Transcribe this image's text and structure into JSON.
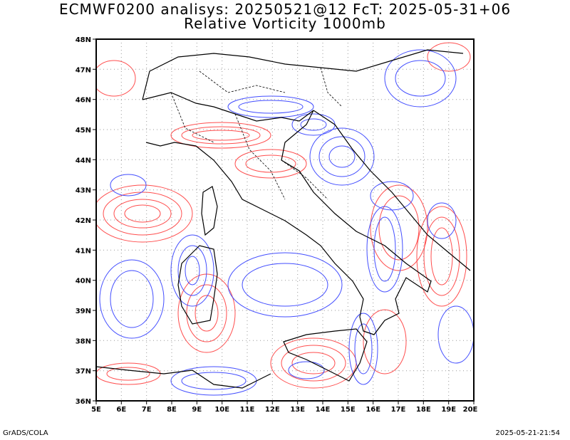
{
  "title_line1": "ECMWF0200 analisys: 20250521@12 FcT: 2025-05-31+06",
  "title_line2": "Relative Vorticity 1000mb",
  "footer_left": "GrADS/COLA",
  "footer_right": "2025-05-21-21:54",
  "axes": {
    "lon_labels": [
      "5E",
      "6E",
      "7E",
      "8E",
      "9E",
      "10E",
      "11E",
      "12E",
      "13E",
      "14E",
      "15E",
      "16E",
      "17E",
      "18E",
      "19E",
      "20E"
    ],
    "lat_labels": [
      "48N",
      "47N",
      "46N",
      "45N",
      "44N",
      "43N",
      "42N",
      "41N",
      "40N",
      "39N",
      "38N",
      "37N",
      "36N"
    ],
    "lon_range": [
      5,
      20
    ],
    "lat_range": [
      36,
      48
    ]
  },
  "colors": {
    "positive_contours": "#ff3b3b",
    "negative_contours": "#2f3bff",
    "coastline": "#000000",
    "grid": "#999999"
  }
}
